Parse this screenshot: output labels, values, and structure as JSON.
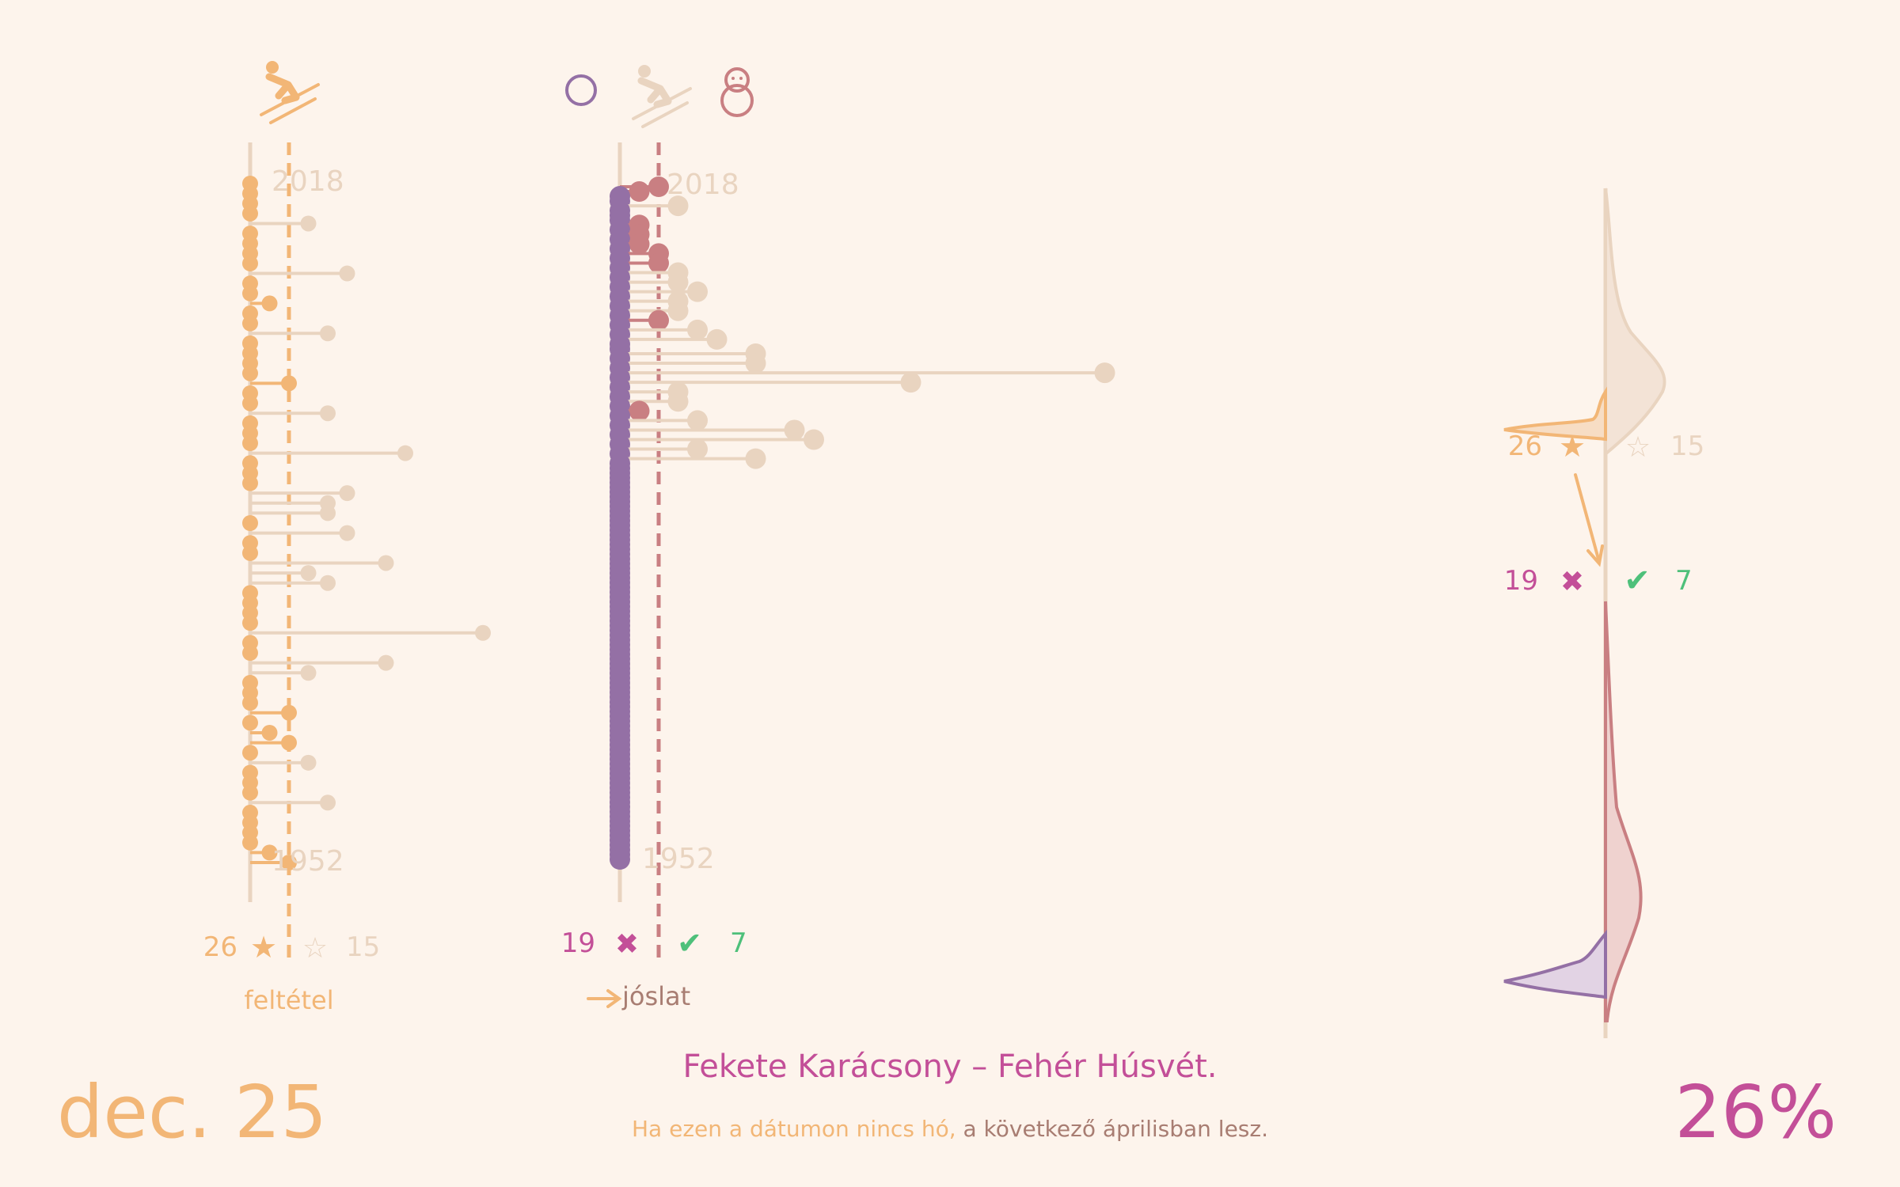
{
  "colors": {
    "background": "#fdf4ec",
    "orange": "#f2b676",
    "beige": "#e9d4c0",
    "purple": "#9470a5",
    "rose": "#c97f82",
    "magenta": "#c34f98",
    "green": "#4ec07a",
    "brown": "#a87d72"
  },
  "icons": {
    "left_header": "skier-icon",
    "right_header": [
      "circle-icon",
      "skier-icon",
      "snowman-icon"
    ],
    "condition_true": "star-icon",
    "condition_false": "star-outline-icon",
    "prediction_wrong": "cross-icon",
    "prediction_right": "check-icon"
  },
  "left_panel": {
    "year_top": "2018",
    "year_bottom": "1952",
    "count_true": "26",
    "count_false": "15",
    "axis_caption": "feltétel"
  },
  "right_panel": {
    "year_top": "2018",
    "year_bottom": "1952",
    "count_wrong": "19",
    "count_right": "7",
    "axis_caption": "jóslat"
  },
  "side_panel": {
    "count_true": "26",
    "count_false": "15",
    "count_wrong": "19",
    "count_right": "7"
  },
  "date_label": "dec. 25",
  "percentage": "26%",
  "title": "Fekete Karácsony – Fehér Húsvét.",
  "subtitle": {
    "part1": "Ha ezen a dátumon nincs hó,",
    "part2": "a következő áprilisban lesz."
  },
  "chart_data": {
    "type": "lollipop",
    "years": [
      2018,
      1952
    ],
    "condition_series": {
      "name": "feltétel",
      "threshold": 2,
      "values": [
        0,
        0,
        0,
        0,
        3,
        0,
        0,
        0,
        0,
        5,
        0,
        0,
        1,
        0,
        0,
        4,
        0,
        0,
        0,
        0,
        2,
        0,
        0,
        4,
        0,
        0,
        0,
        8,
        0,
        0,
        0,
        5,
        4,
        4,
        0,
        5,
        0,
        0,
        7,
        3,
        4,
        0,
        0,
        0,
        0,
        12,
        0,
        0,
        7,
        3,
        0,
        0,
        0,
        2,
        0,
        1,
        2,
        0,
        3,
        0,
        0,
        0,
        4,
        0,
        0,
        0,
        0,
        1,
        2
      ]
    },
    "prediction_series": {
      "name": "jóslat",
      "threshold": 2,
      "values": [
        2,
        1,
        0,
        0,
        3,
        0,
        0,
        0,
        1,
        0,
        1,
        0,
        1,
        0,
        2,
        0,
        2,
        0,
        3,
        0,
        3,
        0,
        4,
        0,
        3,
        0,
        3,
        0,
        2,
        0,
        4,
        0,
        5,
        0,
        0,
        7,
        0,
        7,
        0,
        25,
        0,
        15,
        0,
        3,
        0,
        3,
        0,
        1,
        0,
        4,
        0,
        9,
        0,
        10,
        0,
        4,
        0,
        7,
        0,
        0,
        0,
        0,
        0,
        0,
        0,
        0,
        0,
        0,
        0,
        0,
        0,
        0,
        0,
        0,
        0,
        0,
        0,
        0,
        0,
        0,
        0,
        0,
        0,
        0,
        0,
        0,
        0,
        0,
        0,
        0,
        0,
        0,
        0,
        0,
        0,
        0,
        0,
        0,
        0,
        0,
        0,
        0,
        0,
        0,
        0,
        0,
        0,
        0,
        0,
        0,
        0,
        0,
        0,
        0,
        0,
        0,
        0,
        0,
        0,
        0,
        0,
        0,
        0,
        0,
        0,
        0,
        0,
        0,
        0,
        0,
        0,
        0,
        0,
        0,
        0,
        0,
        0,
        0,
        0,
        0,
        0,
        0
      ]
    }
  }
}
